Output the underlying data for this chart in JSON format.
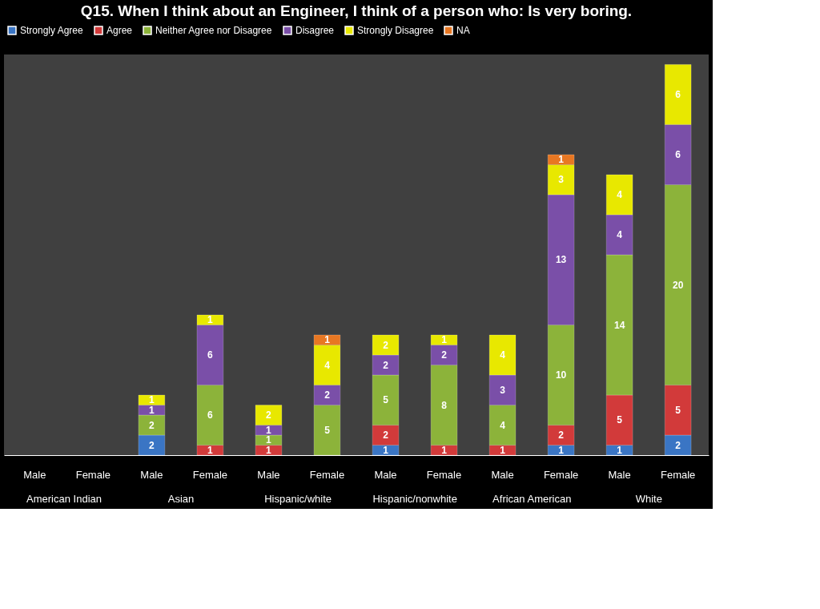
{
  "chart_data": {
    "type": "bar",
    "stacked": true,
    "data_labels": true,
    "legend": "top",
    "title": "Q15. When I think about an Engineer, I think of a person who: Is very boring.",
    "categories": [
      "Male",
      "Female",
      "Male",
      "Female",
      "Male",
      "Female",
      "Male",
      "Female",
      "Male",
      "Female",
      "Male",
      "Female"
    ],
    "annotations": [
      "American Indian",
      "Asian",
      "Hispanic/white",
      "Hispanic/nonwhite",
      "African American",
      "White"
    ],
    "series": [
      {
        "name": "Strongly Agree",
        "color": "#3a75c4",
        "values": [
          null,
          null,
          2,
          null,
          null,
          null,
          1,
          null,
          null,
          1,
          1,
          2
        ]
      },
      {
        "name": "Agree",
        "color": "#d23a3a",
        "values": [
          null,
          null,
          null,
          1,
          1,
          null,
          2,
          1,
          1,
          2,
          5,
          5
        ]
      },
      {
        "name": "Neither Agree nor Disagree",
        "color": "#8cb33a",
        "values": [
          null,
          null,
          2,
          6,
          1,
          5,
          5,
          8,
          4,
          10,
          14,
          20
        ]
      },
      {
        "name": "Disagree",
        "color": "#7a4fa8",
        "values": [
          null,
          null,
          1,
          6,
          1,
          2,
          2,
          2,
          3,
          13,
          4,
          6
        ]
      },
      {
        "name": "Strongly Disagree",
        "color": "#e8e800",
        "values": [
          null,
          null,
          1,
          1,
          2,
          4,
          2,
          1,
          4,
          3,
          4,
          6
        ]
      },
      {
        "name": "NA",
        "color": "#e87722",
        "values": [
          null,
          null,
          null,
          null,
          null,
          1,
          null,
          null,
          null,
          1,
          null,
          null
        ]
      }
    ]
  }
}
